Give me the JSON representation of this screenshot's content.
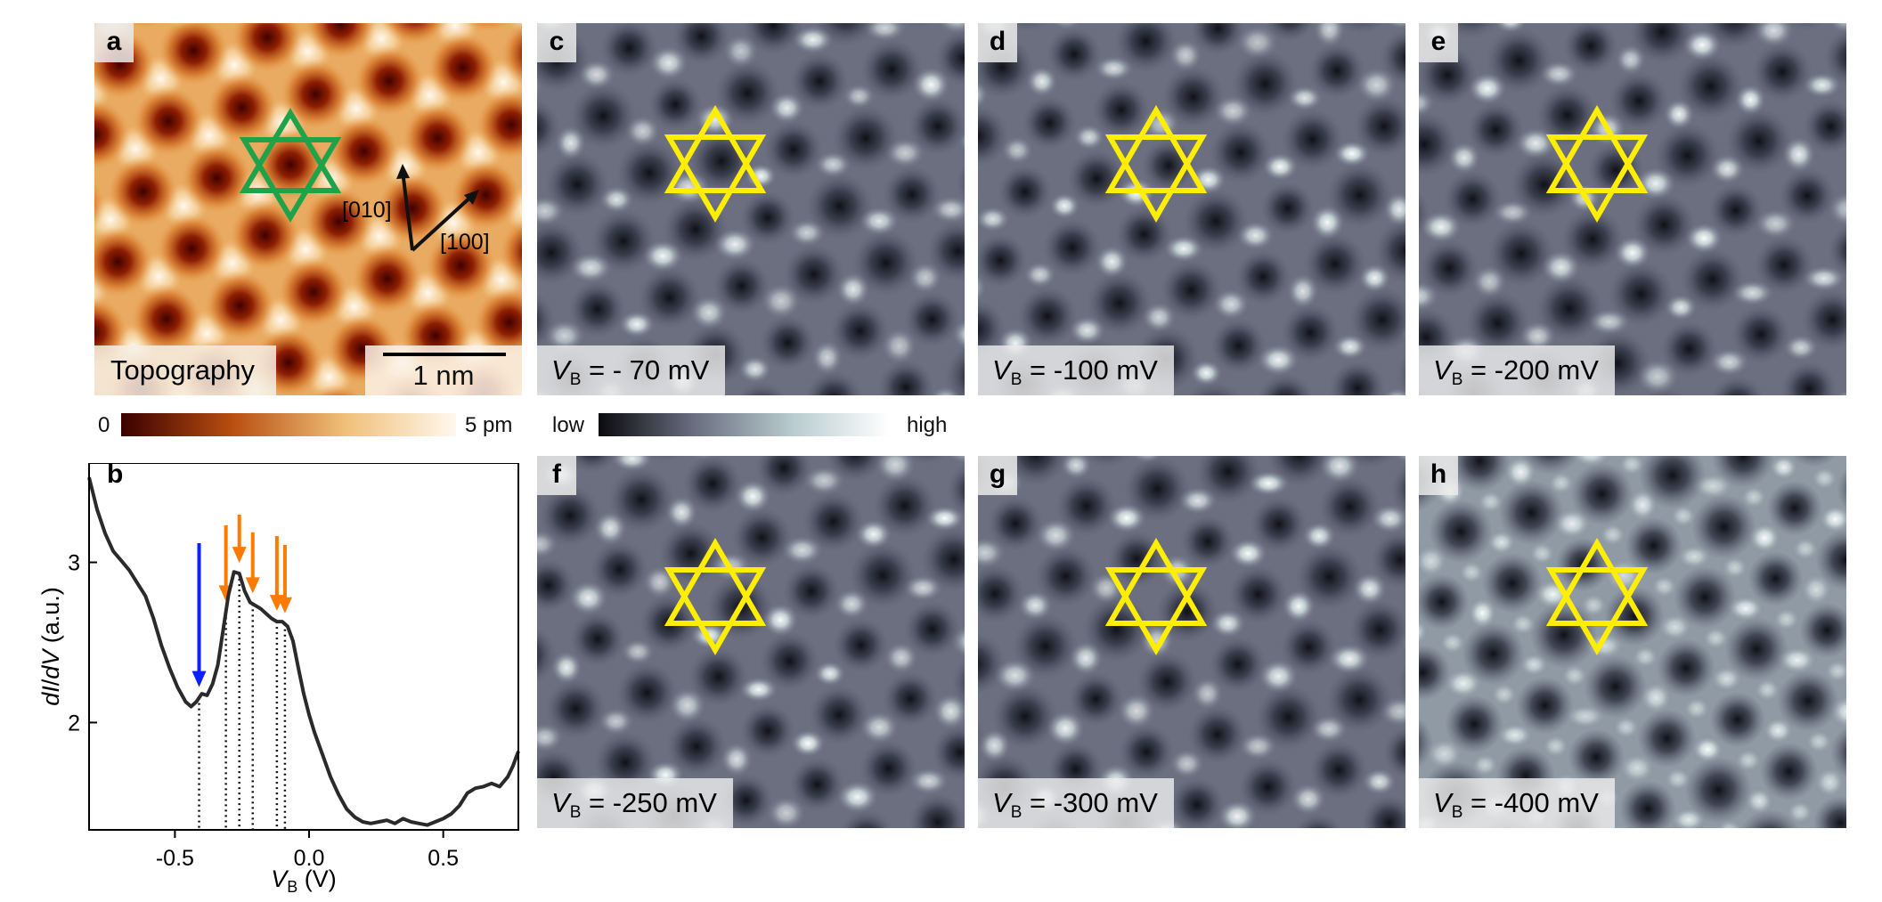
{
  "panels": {
    "a": {
      "label": "a",
      "caption": "Topography",
      "scale_bar": "1 nm",
      "dir_010": "[010]",
      "dir_100": "[100]"
    },
    "c": {
      "label": "c",
      "v_prefix": "V",
      "v_sub": "B",
      "v_value": "= - 70 mV"
    },
    "d": {
      "label": "d",
      "v_prefix": "V",
      "v_sub": "B",
      "v_value": "= -100 mV"
    },
    "e": {
      "label": "e",
      "v_prefix": "V",
      "v_sub": "B",
      "v_value": "= -200 mV"
    },
    "f": {
      "label": "f",
      "v_prefix": "V",
      "v_sub": "B",
      "v_value": "= -250 mV"
    },
    "g": {
      "label": "g",
      "v_prefix": "V",
      "v_sub": "B",
      "v_value": "= -300 mV"
    },
    "h": {
      "label": "h",
      "v_prefix": "V",
      "v_sub": "B",
      "v_value": "= -400 mV"
    }
  },
  "colorbars": {
    "topo": {
      "min_label": "0",
      "max_label": "5 pm",
      "colors": [
        "#3a0000",
        "#b84e10",
        "#f0c07a",
        "#fff8ee"
      ]
    },
    "didv": {
      "min_label": "low",
      "max_label": "high",
      "colors": [
        "#0a0a0e",
        "#6a6e80",
        "#b9cccf",
        "#ffffff"
      ]
    }
  },
  "colors": {
    "star_topo": "#1fa34a",
    "star_map": "#ffee00",
    "arrow_blue": "#0a20ff",
    "arrow_orange": "#ff7a00"
  },
  "chart_data": {
    "type": "line",
    "panel_label": "b",
    "xlabel": "V_B (V)",
    "ylabel": "dI/dV (a.u.)",
    "xlim": [
      -0.82,
      0.78
    ],
    "ylim": [
      1.33,
      3.62
    ],
    "xticks": [
      -0.5,
      0.0,
      0.5
    ],
    "xtick_labels": [
      "-0.5",
      "0.0",
      "0.5"
    ],
    "yticks": [
      2,
      3
    ],
    "ytick_labels": [
      "2",
      "3"
    ],
    "series": [
      {
        "x": [
          -0.82,
          -0.79,
          -0.76,
          -0.73,
          -0.7,
          -0.67,
          -0.64,
          -0.61,
          -0.58,
          -0.55,
          -0.52,
          -0.49,
          -0.46,
          -0.44,
          -0.42,
          -0.4,
          -0.38,
          -0.36,
          -0.34,
          -0.32,
          -0.3,
          -0.28,
          -0.26,
          -0.24,
          -0.22,
          -0.2,
          -0.18,
          -0.16,
          -0.14,
          -0.12,
          -0.1,
          -0.08,
          -0.06,
          -0.04,
          -0.02,
          0.0,
          0.02,
          0.05,
          0.08,
          0.11,
          0.14,
          0.17,
          0.2,
          0.23,
          0.26,
          0.29,
          0.32,
          0.35,
          0.38,
          0.41,
          0.44,
          0.47,
          0.5,
          0.53,
          0.56,
          0.59,
          0.62,
          0.65,
          0.68,
          0.71,
          0.74,
          0.76,
          0.78
        ],
        "y": [
          3.53,
          3.33,
          3.18,
          3.07,
          3.01,
          2.95,
          2.87,
          2.79,
          2.65,
          2.48,
          2.34,
          2.22,
          2.13,
          2.1,
          2.13,
          2.18,
          2.17,
          2.24,
          2.36,
          2.58,
          2.8,
          2.94,
          2.93,
          2.82,
          2.75,
          2.73,
          2.71,
          2.68,
          2.65,
          2.63,
          2.63,
          2.6,
          2.51,
          2.34,
          2.18,
          2.05,
          1.94,
          1.8,
          1.66,
          1.55,
          1.46,
          1.41,
          1.38,
          1.37,
          1.38,
          1.39,
          1.37,
          1.4,
          1.38,
          1.37,
          1.36,
          1.38,
          1.4,
          1.43,
          1.48,
          1.56,
          1.59,
          1.6,
          1.62,
          1.6,
          1.66,
          1.73,
          1.82
        ]
      }
    ],
    "dotted_lines_x": [
      -0.41,
      -0.31,
      -0.26,
      -0.21,
      -0.12,
      -0.09
    ],
    "arrows": [
      {
        "x": -0.41,
        "color": "blue"
      },
      {
        "x": -0.31,
        "color": "orange"
      },
      {
        "x": -0.26,
        "color": "orange"
      },
      {
        "x": -0.21,
        "color": "orange"
      },
      {
        "x": -0.12,
        "color": "orange"
      },
      {
        "x": -0.09,
        "color": "orange"
      }
    ]
  }
}
